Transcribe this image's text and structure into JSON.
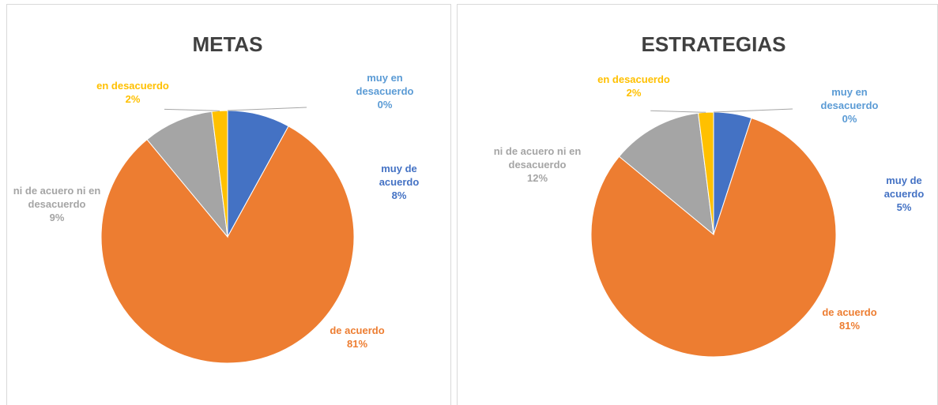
{
  "chart_data": [
    {
      "type": "pie",
      "title": "METAS",
      "categories": [
        "muy de acuerdo",
        "de acuerdo",
        "ni de acuero ni en desacuerdo",
        "en desacuerdo",
        "muy en desacuerdo"
      ],
      "values": [
        8,
        81,
        9,
        2,
        0
      ],
      "value_labels": [
        "8%",
        "81%",
        "9%",
        "2%",
        "0%"
      ],
      "colors": [
        "#4472c4",
        "#ed7d31",
        "#a5a5a5",
        "#ffc000",
        "#5b9bd5"
      ]
    },
    {
      "type": "pie",
      "title": "ESTRATEGIAS",
      "categories": [
        "muy de acuerdo",
        "de acuerdo",
        "ni de acuero ni en desacuerdo",
        "en desacuerdo",
        "muy en desacuerdo"
      ],
      "values": [
        5,
        81,
        12,
        2,
        0
      ],
      "value_labels": [
        "5%",
        "81%",
        "12%",
        "2%",
        "0%"
      ],
      "colors": [
        "#4472c4",
        "#ed7d31",
        "#a5a5a5",
        "#ffc000",
        "#5b9bd5"
      ]
    }
  ]
}
